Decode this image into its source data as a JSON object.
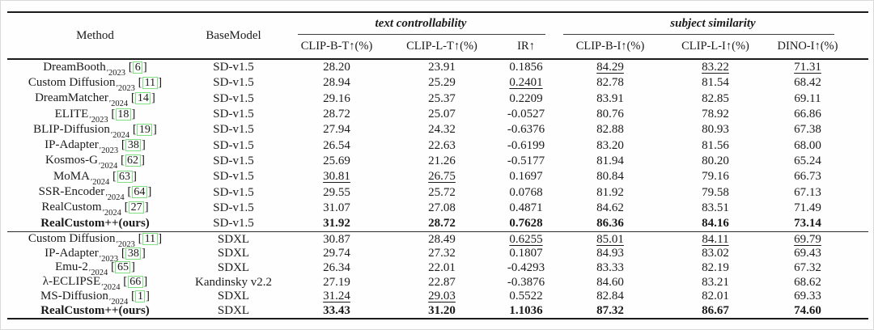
{
  "table": {
    "header": {
      "method": "Method",
      "basemodel": "BaseModel",
      "group1": "text controllability",
      "group2": "subject similarity",
      "metrics": [
        "CLIP-B-T↑(%)",
        "CLIP-L-T↑(%)",
        "IR↑",
        "CLIP-B-I↑(%)",
        "CLIP-L-I↑(%)",
        "DINO-I↑(%)"
      ]
    },
    "year_mark": "′",
    "cite_open": "[",
    "cite_close": "]",
    "colors": {
      "citation_box": "#7fe07f",
      "text": "#1b1b1b",
      "rule": "#1b1b1b"
    },
    "groups": [
      {
        "rows": [
          {
            "name": "DreamBooth",
            "year": "2023",
            "cite": "6",
            "base": "SD-v1.5",
            "vals": [
              {
                "v": "28.20"
              },
              {
                "v": "23.91"
              },
              {
                "v": "0.1856"
              },
              {
                "v": "84.29",
                "u": true
              },
              {
                "v": "83.22",
                "u": true
              },
              {
                "v": "71.31",
                "u": true
              }
            ]
          },
          {
            "name": "Custom Diffusion",
            "year": "2023",
            "cite": "11",
            "base": "SD-v1.5",
            "vals": [
              {
                "v": "28.94"
              },
              {
                "v": "25.29"
              },
              {
                "v": "0.2401",
                "u": true
              },
              {
                "v": "82.78"
              },
              {
                "v": "81.54"
              },
              {
                "v": "68.42"
              }
            ]
          },
          {
            "name": "DreamMatcher",
            "year": "2024",
            "cite": "14",
            "base": "SD-v1.5",
            "vals": [
              {
                "v": "29.16"
              },
              {
                "v": "25.37"
              },
              {
                "v": "0.2209"
              },
              {
                "v": "83.91"
              },
              {
                "v": "82.85"
              },
              {
                "v": "69.11"
              }
            ]
          },
          {
            "name": "ELITE",
            "year": "2023",
            "cite": "18",
            "base": "SD-v1.5",
            "vals": [
              {
                "v": "28.72"
              },
              {
                "v": "25.07"
              },
              {
                "v": "-0.0527"
              },
              {
                "v": "80.76"
              },
              {
                "v": "78.92"
              },
              {
                "v": "66.86"
              }
            ]
          },
          {
            "name": "BLIP-Diffusion",
            "year": "2024",
            "cite": "19",
            "base": "SD-v1.5",
            "vals": [
              {
                "v": "27.94"
              },
              {
                "v": "24.32"
              },
              {
                "v": "-0.6376"
              },
              {
                "v": "82.88"
              },
              {
                "v": "80.93"
              },
              {
                "v": "67.38"
              }
            ]
          },
          {
            "name": "IP-Adapter",
            "year": "2023",
            "cite": "38",
            "base": "SD-v1.5",
            "vals": [
              {
                "v": "26.54"
              },
              {
                "v": "22.63"
              },
              {
                "v": "-0.6199"
              },
              {
                "v": "83.20"
              },
              {
                "v": "81.56"
              },
              {
                "v": "68.00"
              }
            ]
          },
          {
            "name": "Kosmos-G",
            "year": "2024",
            "cite": "62",
            "base": "SD-v1.5",
            "vals": [
              {
                "v": "25.69"
              },
              {
                "v": "21.26"
              },
              {
                "v": "-0.5177"
              },
              {
                "v": "81.94"
              },
              {
                "v": "80.20"
              },
              {
                "v": "65.24"
              }
            ]
          },
          {
            "name": "MoMA",
            "year": "2024",
            "cite": "63",
            "base": "SD-v1.5",
            "vals": [
              {
                "v": "30.81",
                "u": true
              },
              {
                "v": "26.75",
                "u": true
              },
              {
                "v": "0.1697"
              },
              {
                "v": "80.84"
              },
              {
                "v": "79.16"
              },
              {
                "v": "66.73"
              }
            ]
          },
          {
            "name": "SSR-Encoder",
            "year": "2024",
            "cite": "64",
            "base": "SD-v1.5",
            "vals": [
              {
                "v": "29.55"
              },
              {
                "v": "25.72"
              },
              {
                "v": "0.0768"
              },
              {
                "v": "81.92"
              },
              {
                "v": "79.58"
              },
              {
                "v": "67.13"
              }
            ]
          },
          {
            "name": "RealCustom",
            "year": "2024",
            "cite": "27",
            "base": "SD-v1.5",
            "vals": [
              {
                "v": "31.07"
              },
              {
                "v": "27.08"
              },
              {
                "v": "0.4871"
              },
              {
                "v": "84.62"
              },
              {
                "v": "83.51"
              },
              {
                "v": "71.49"
              }
            ]
          },
          {
            "name": "RealCustom++(ours)",
            "year": null,
            "cite": null,
            "base": "SD-v1.5",
            "bold": true,
            "vals": [
              {
                "v": "31.92",
                "b": true
              },
              {
                "v": "28.72",
                "b": true
              },
              {
                "v": "0.7628",
                "b": true
              },
              {
                "v": "86.36",
                "b": true
              },
              {
                "v": "84.16",
                "b": true
              },
              {
                "v": "73.14",
                "b": true
              }
            ]
          }
        ]
      },
      {
        "rows": [
          {
            "name": "Custom Diffusion",
            "year": "2023",
            "cite": "11",
            "base": "SDXL",
            "vals": [
              {
                "v": "30.87"
              },
              {
                "v": "28.49"
              },
              {
                "v": "0.6255",
                "u": true
              },
              {
                "v": "85.01",
                "u": true
              },
              {
                "v": "84.11",
                "u": true
              },
              {
                "v": "69.79",
                "u": true
              }
            ]
          },
          {
            "name": "IP-Adapter",
            "year": "2023",
            "cite": "38",
            "base": "SDXL",
            "vals": [
              {
                "v": "29.74"
              },
              {
                "v": "27.32"
              },
              {
                "v": "0.1807"
              },
              {
                "v": "84.93"
              },
              {
                "v": "83.02"
              },
              {
                "v": "69.43"
              }
            ]
          },
          {
            "name": "Emu-2",
            "year": "2024",
            "cite": "65",
            "base": "SDXL",
            "vals": [
              {
                "v": "26.34"
              },
              {
                "v": "22.01"
              },
              {
                "v": "-0.4293"
              },
              {
                "v": "83.33"
              },
              {
                "v": "82.19"
              },
              {
                "v": "67.32"
              }
            ]
          },
          {
            "name": "λ-ECLIPSE",
            "year": "2024",
            "cite": "66",
            "base": "Kandinsky v2.2",
            "vals": [
              {
                "v": "27.19"
              },
              {
                "v": "22.87"
              },
              {
                "v": "-0.3876"
              },
              {
                "v": "84.60"
              },
              {
                "v": "83.21"
              },
              {
                "v": "68.62"
              }
            ]
          },
          {
            "name": "MS-Diffusion",
            "year": "2024",
            "cite": "1",
            "base": "SDXL",
            "vals": [
              {
                "v": "31.24",
                "u": true
              },
              {
                "v": "29.03",
                "u": true
              },
              {
                "v": "0.5522"
              },
              {
                "v": "82.84"
              },
              {
                "v": "82.01"
              },
              {
                "v": "69.33"
              }
            ]
          },
          {
            "name": "RealCustom++(ours)",
            "year": null,
            "cite": null,
            "base": "SDXL",
            "bold": true,
            "vals": [
              {
                "v": "33.43",
                "b": true
              },
              {
                "v": "31.20",
                "b": true
              },
              {
                "v": "1.1036",
                "b": true
              },
              {
                "v": "87.32",
                "b": true
              },
              {
                "v": "86.67",
                "b": true
              },
              {
                "v": "74.60",
                "b": true
              }
            ]
          }
        ]
      }
    ]
  }
}
